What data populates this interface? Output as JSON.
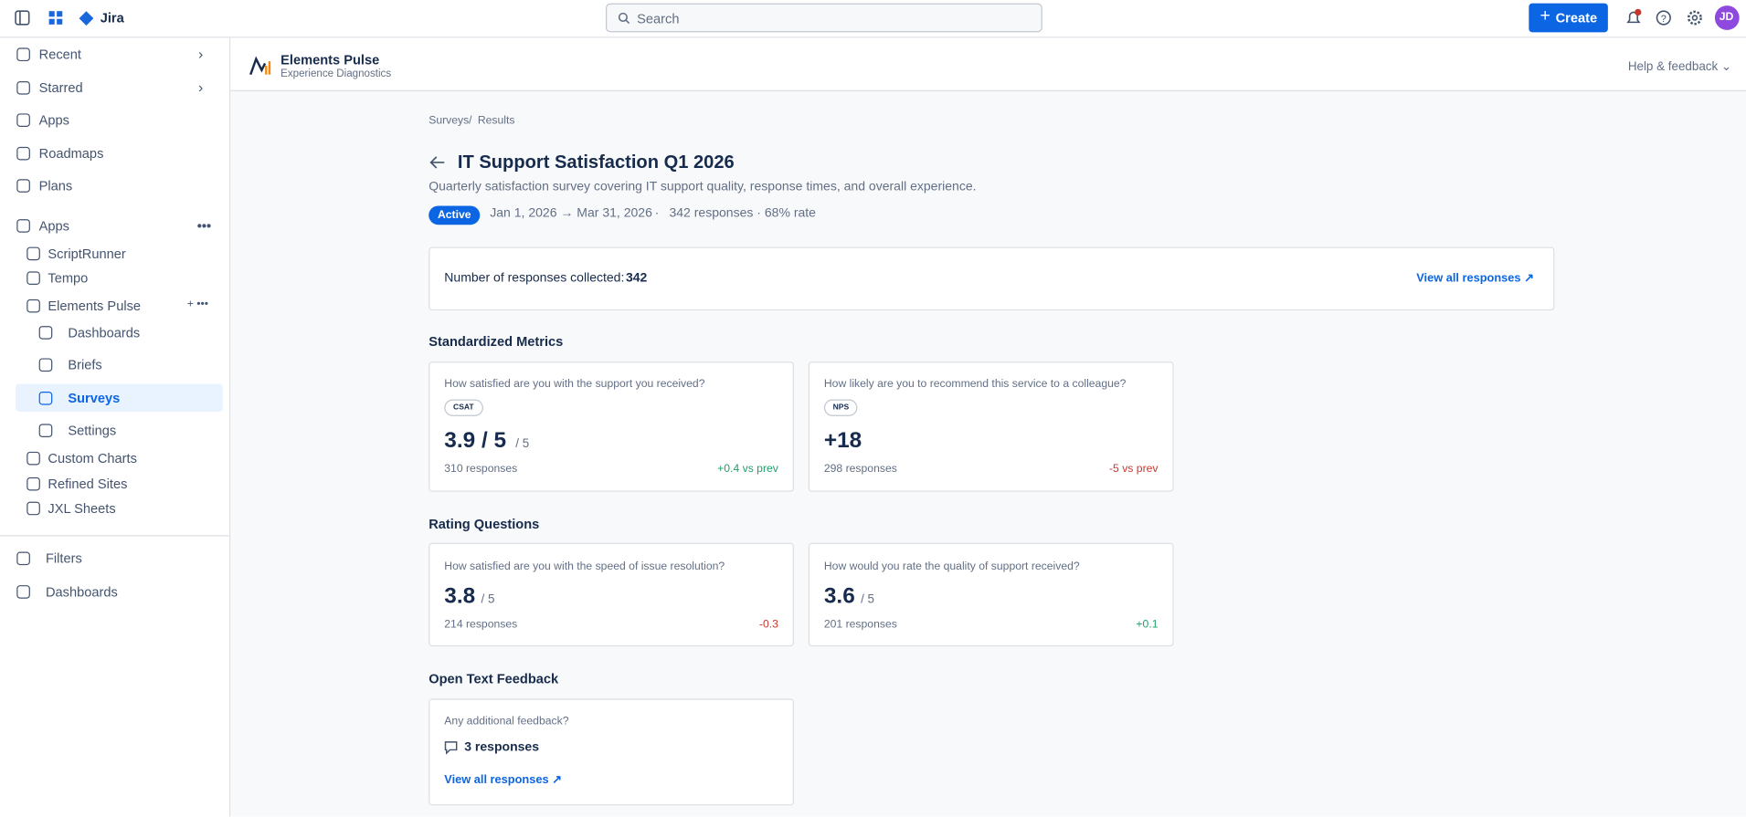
{
  "topbar": {
    "product": "Jira",
    "search": "Search",
    "create": "Create",
    "avatar": "JD"
  },
  "sidebar": {
    "top": [
      "Recent",
      "Starred",
      "Apps",
      "Roadmaps",
      "Plans"
    ],
    "apps_section": "Apps",
    "apps": [
      "ScriptRunner",
      "Tempo",
      "Elements Pulse"
    ],
    "pulse_items": [
      "Dashboards",
      "Briefs",
      "Surveys",
      "Settings"
    ],
    "more_apps": [
      "Custom Charts",
      "Refined Sites",
      "JXL Sheets"
    ],
    "bottom": [
      "Filters",
      "Dashboards"
    ]
  },
  "app_header": {
    "name": "Elements Pulse",
    "subtitle": "Experience Diagnostics",
    "help": "Help & feedback"
  },
  "breadcrumbs": {
    "items": [
      "Surveys",
      "Results"
    ],
    "separator": "/"
  },
  "survey": {
    "title": "IT Support Satisfaction Q1 2026",
    "description": "Quarterly satisfaction survey covering IT support quality, response times, and overall experience.",
    "status": "Active",
    "dates": "Jan 1, 2026 → Mar 31, 2026",
    "separator": "·",
    "stats": "342 responses · 68% rate"
  },
  "summary": {
    "label": "Number of responses collected:",
    "count": "342",
    "link": "View all responses"
  },
  "standardized": {
    "heading": "Standardized Metrics",
    "cards": [
      {
        "question": "How satisfied are you with the support you received?",
        "badge": "CSAT",
        "score": "3.9 / 5",
        "scale": "/ 5",
        "responses": "310 responses",
        "delta": "+0.4 vs prev"
      },
      {
        "question": "How likely are you to recommend this service to a colleague?",
        "badge": "NPS",
        "score": "+18",
        "responses": "298 responses",
        "delta": "-5 vs prev"
      }
    ]
  },
  "rating": {
    "heading": "Rating Questions",
    "cards": [
      {
        "question": "How satisfied are you with the speed of issue resolution?",
        "score": "3.8",
        "scale": "/ 5",
        "responses": "214 responses",
        "delta": "-0.3"
      },
      {
        "question": "How would you rate the quality of support received?",
        "score": "3.6",
        "scale": "/ 5",
        "responses": "201 responses",
        "delta": "+0.1"
      }
    ]
  },
  "open_text": {
    "heading": "Open Text Feedback",
    "question": "Any additional feedback?",
    "responses": "3 responses",
    "link": "View all responses"
  }
}
